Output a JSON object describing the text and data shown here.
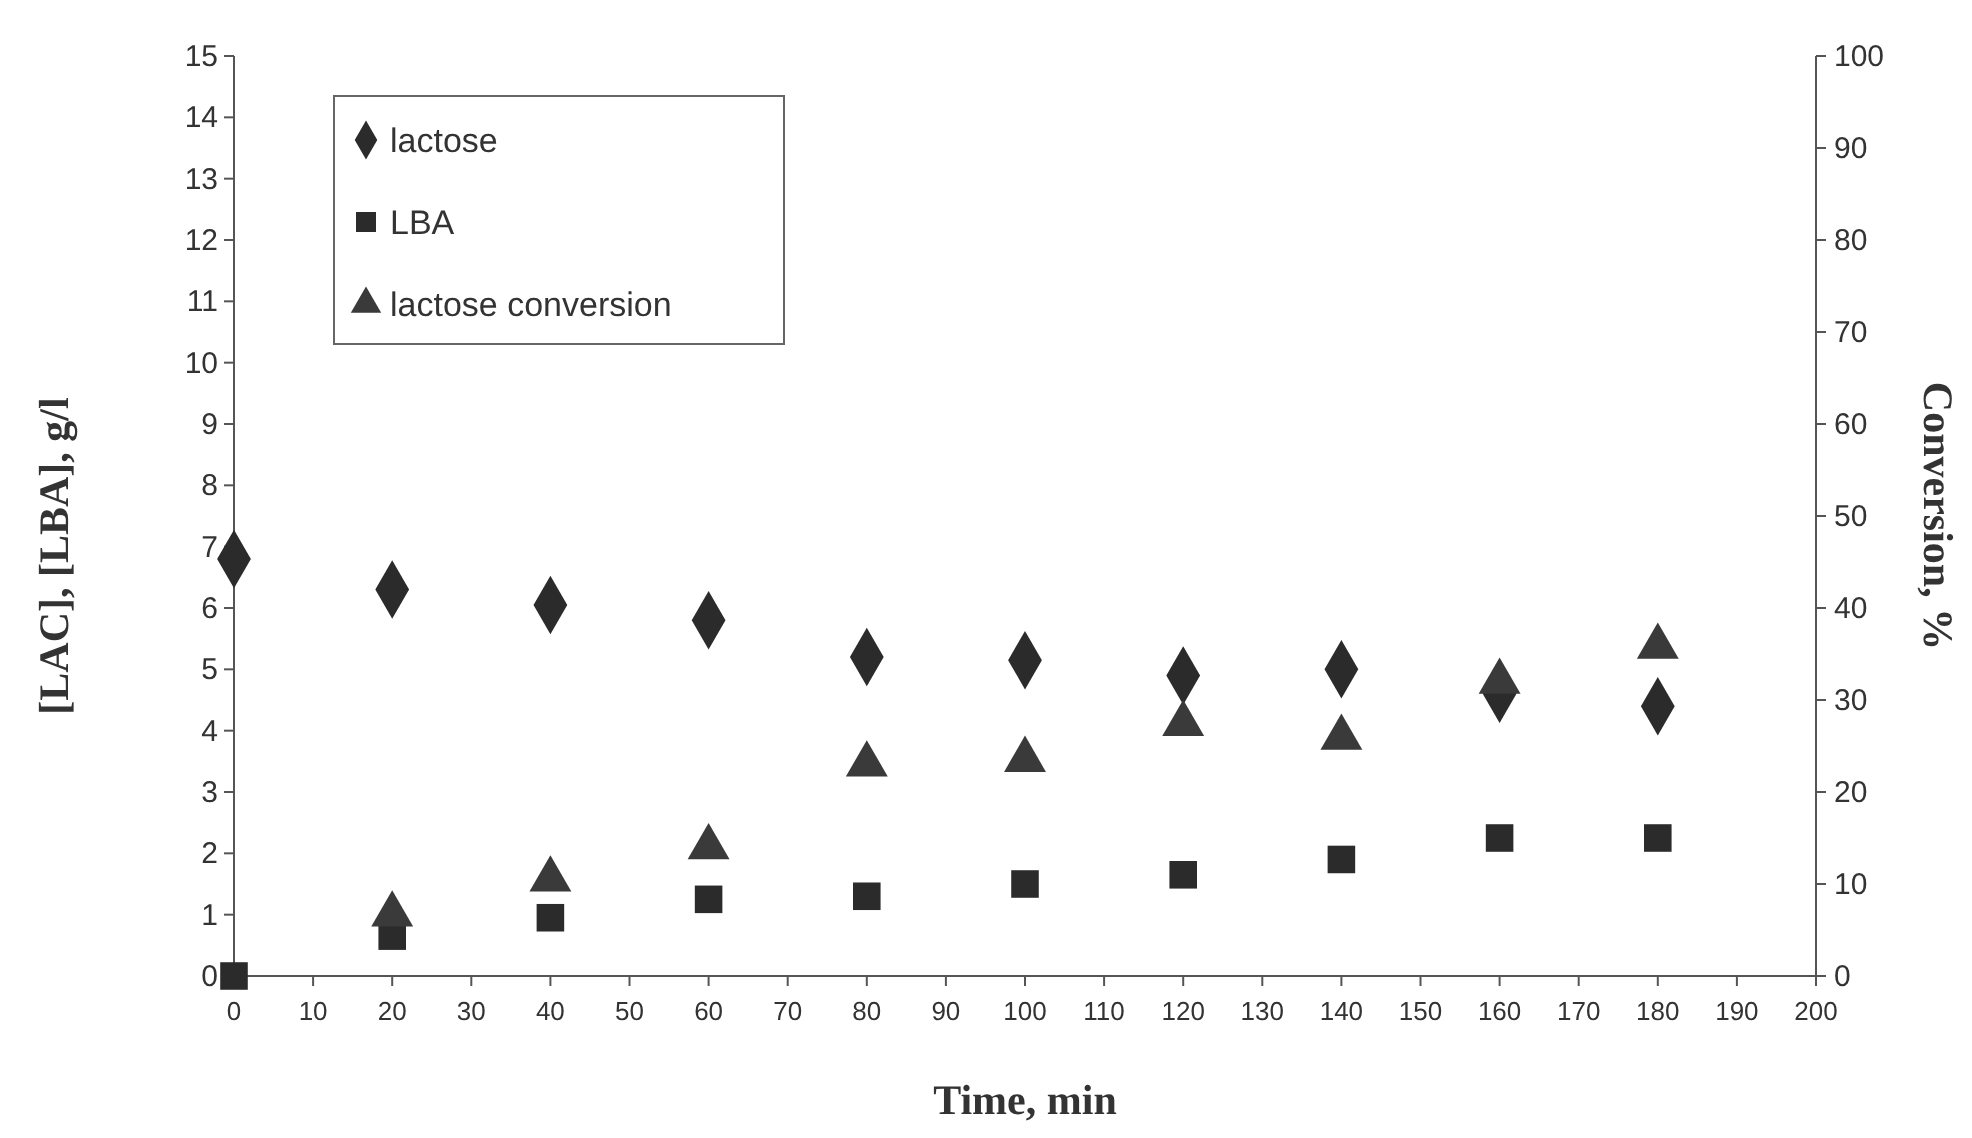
{
  "chart_data": {
    "type": "scatter",
    "xlabel": "Time, min",
    "ylabel": "[LAC], [LBA], g/l",
    "y2label": "Conversion, %",
    "x": [
      0,
      20,
      40,
      60,
      80,
      100,
      120,
      140,
      160,
      180
    ],
    "series": [
      {
        "name": "lactose",
        "color": "#2b2b2b",
        "marker": "diamond",
        "values": [
          6.8,
          6.3,
          6.05,
          5.8,
          5.2,
          5.15,
          4.9,
          5.0,
          4.6,
          4.4
        ]
      },
      {
        "name": "LBA",
        "color": "#2b2b2b",
        "marker": "square",
        "values": [
          0,
          0.65,
          0.95,
          1.25,
          1.3,
          1.5,
          1.65,
          1.9,
          2.25,
          2.25
        ]
      },
      {
        "name": "lactose conversion",
        "color": "#3a3a3a",
        "marker": "triangle",
        "axis": "y2",
        "values": [
          null,
          6.7,
          10.5,
          14,
          23,
          23.5,
          27.4,
          25.9,
          32,
          35.8
        ]
      }
    ],
    "xlim": [
      0,
      200
    ],
    "xticks": [
      0,
      10,
      20,
      30,
      40,
      50,
      60,
      70,
      80,
      90,
      100,
      110,
      120,
      130,
      140,
      150,
      160,
      170,
      180,
      190,
      200
    ],
    "ylim": [
      0,
      15
    ],
    "yticks": [
      0,
      1,
      2,
      3,
      4,
      5,
      6,
      7,
      8,
      9,
      10,
      11,
      12,
      13,
      14,
      15
    ],
    "y2lim": [
      0,
      100
    ],
    "y2ticks": [
      0,
      10,
      20,
      30,
      40,
      50,
      60,
      70,
      80,
      90,
      100
    ],
    "grid": false,
    "legend": "top left"
  }
}
